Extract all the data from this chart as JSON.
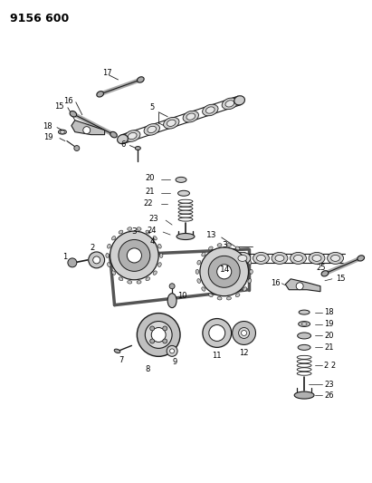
{
  "title": "9156 600",
  "bg_color": "#ffffff",
  "fig_width": 4.11,
  "fig_height": 5.33,
  "dpi": 100,
  "lc": "#1a1a1a",
  "fc_gear": "#cccccc",
  "fc_dark": "#888888",
  "fc_light": "#e8e8e8"
}
